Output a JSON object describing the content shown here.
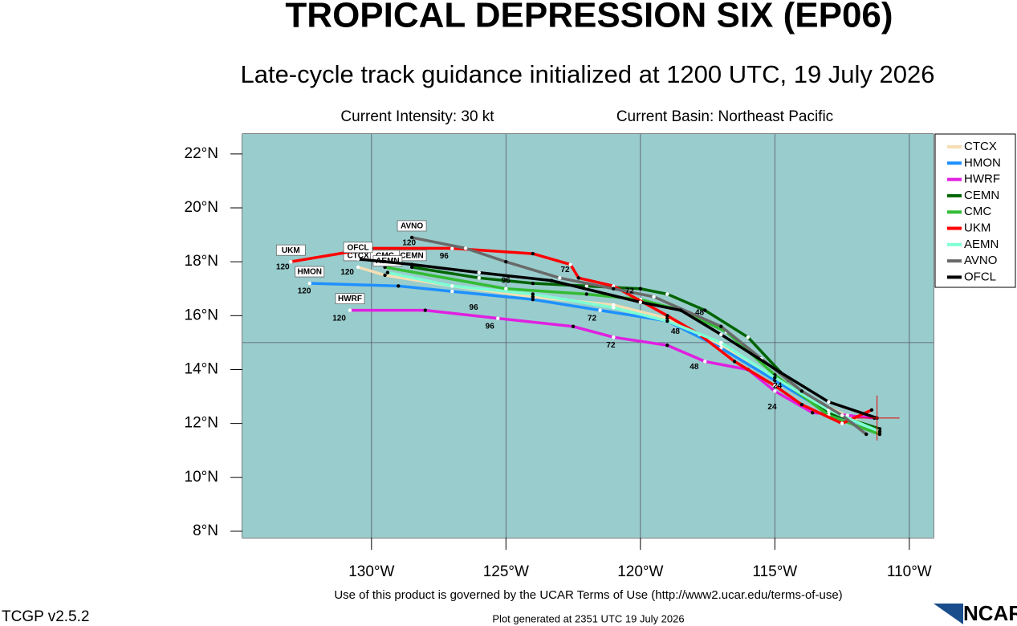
{
  "chart_data": {
    "type": "line",
    "title": "TROPICAL DEPRESSION SIX (EP06)",
    "subtitle": "Late-cycle track guidance initialized at 1200 UTC, 19 July 2026",
    "intensity": "Current Intensity: 30 kt",
    "basin": "Current Basin: Northeast Pacific",
    "footer_terms": "Use of this product is governed by the UCAR Terms of Use (http://www2.ucar.edu/terms-of-use)",
    "footer_generated": "Plot generated at 2351 UTC   19 July 2026",
    "version": "TCGP v2.5.2",
    "logo": "NCAR",
    "xlim": [
      -134.8,
      -109.1
    ],
    "ylim": [
      7.76,
      22.74
    ],
    "xticks": [
      {
        "value": -130,
        "label": "130°W"
      },
      {
        "value": -125,
        "label": "125°W"
      },
      {
        "value": -120,
        "label": "120°W"
      },
      {
        "value": -115,
        "label": "115°W"
      },
      {
        "value": -110,
        "label": "110°W"
      }
    ],
    "yticks": [
      {
        "value": 8,
        "label": "8°N"
      },
      {
        "value": 10,
        "label": "10°N"
      },
      {
        "value": 12,
        "label": "12°N"
      },
      {
        "value": 14,
        "label": "14°N"
      },
      {
        "value": 16,
        "label": "16°N"
      },
      {
        "value": 18,
        "label": "18°N"
      },
      {
        "value": 20,
        "label": "20°N"
      },
      {
        "value": 22,
        "label": "22°N"
      }
    ],
    "ygrid": [
      15
    ],
    "background": "#99cccc",
    "series": [
      {
        "name": "CTCX",
        "color": "#f5deb3",
        "x": [
          -111.3,
          -113,
          -115,
          -117,
          -119,
          -121,
          -124,
          -127,
          -129.5,
          -130.5
        ],
        "values": [
          11.8,
          12.6,
          13.6,
          14.9,
          15.9,
          16.4,
          16.7,
          17.1,
          17.5,
          17.8
        ]
      },
      {
        "name": "HMON",
        "color": "#1e90ff",
        "x": [
          -111.2,
          -113,
          -115,
          -117,
          -119,
          -121.5,
          -124,
          -127,
          -129,
          -132.3
        ],
        "values": [
          11.8,
          12.4,
          13.6,
          14.8,
          15.8,
          16.2,
          16.6,
          16.9,
          17.1,
          17.2
        ],
        "hour_labels": [
          {
            "text": "120",
            "x": -132.5,
            "y": 16.9
          },
          {
            "text": "96",
            "x": -126.2,
            "y": 16.3
          },
          {
            "text": "72",
            "x": -121.8,
            "y": 15.9
          },
          {
            "text": "48",
            "x": -118.7,
            "y": 15.4
          }
        ]
      },
      {
        "name": "HWRF",
        "color": "#e020e0",
        "x": [
          -111.3,
          -112.3,
          -113.6,
          -115,
          -116,
          -117.6,
          -119,
          -121,
          -122.5,
          -125.3,
          -128,
          -130.8
        ],
        "values": [
          12.2,
          12.3,
          12.4,
          13.2,
          14,
          14.3,
          14.9,
          15.2,
          15.6,
          15.9,
          16.2,
          16.2
        ],
        "hour_labels": [
          {
            "text": "120",
            "x": -131.2,
            "y": 15.9
          },
          {
            "text": "96",
            "x": -125.6,
            "y": 15.6
          },
          {
            "text": "72",
            "x": -121.1,
            "y": 14.9
          },
          {
            "text": "48",
            "x": -118,
            "y": 14.1
          },
          {
            "text": "24",
            "x": -115.1,
            "y": 12.6
          }
        ]
      },
      {
        "name": "CEMN",
        "color": "#006400",
        "x": [
          -111.1,
          -113,
          -114.5,
          -116,
          -117.6,
          -119,
          -120,
          -122,
          -124,
          -126,
          -128.5
        ],
        "values": [
          11.8,
          12.4,
          13.6,
          15.2,
          16.2,
          16.8,
          17,
          17.1,
          17.2,
          17.4,
          17.8
        ],
        "hour_labels": [
          {
            "text": "48",
            "x": -117.8,
            "y": 16.1
          }
        ]
      },
      {
        "name": "CMC",
        "color": "#33bb33",
        "x": [
          -111.1,
          -113,
          -115,
          -116.8,
          -118.5,
          -120,
          -122,
          -125,
          -129.5
        ],
        "values": [
          11.6,
          12.3,
          13.8,
          15.4,
          16.2,
          16.6,
          16.8,
          17,
          17.8
        ]
      },
      {
        "name": "UKM",
        "color": "#ff0000",
        "x": [
          -111.4,
          -112.5,
          -114,
          -115,
          -116.5,
          -117.8,
          -119,
          -121,
          -122.3,
          -122.6,
          -124,
          -127,
          -130,
          -133
        ],
        "values": [
          12.5,
          12,
          12.7,
          13.4,
          14.3,
          15.3,
          16,
          17.1,
          17.4,
          17.9,
          18.3,
          18.5,
          18.5,
          18
        ],
        "hour_labels": [
          {
            "text": "120",
            "x": -133.3,
            "y": 17.8
          },
          {
            "text": "96",
            "x": -127.3,
            "y": 18.2
          },
          {
            "text": "72",
            "x": -122.8,
            "y": 17.7
          }
        ]
      },
      {
        "name": "AEMN",
        "color": "#7fffd4",
        "x": [
          -111.1,
          -113,
          -115,
          -117,
          -119,
          -121,
          -124,
          -127,
          -129.4
        ],
        "values": [
          11.7,
          12.5,
          13.7,
          15,
          15.8,
          16.3,
          16.8,
          17.1,
          17.6
        ]
      },
      {
        "name": "AVNO",
        "color": "#696969",
        "x": [
          -111.6,
          -112.5,
          -114,
          -115.5,
          -117,
          -119.5,
          -121,
          -123,
          -125,
          -126.5,
          -128.5
        ],
        "values": [
          11.6,
          12.3,
          13.2,
          14.4,
          15.6,
          16.7,
          17,
          17.4,
          18,
          18.5,
          18.9
        ],
        "hour_labels": [
          {
            "text": "120",
            "x": -128.6,
            "y": 18.7
          }
        ]
      },
      {
        "name": "OFCL",
        "color": "#000000",
        "x": [
          -111.2,
          -113,
          -114.8,
          -117,
          -118.5,
          -120,
          -123.3,
          -126,
          -128.5,
          -130.5
        ],
        "values": [
          12.2,
          12.8,
          13.9,
          15.3,
          16.2,
          16.5,
          17.3,
          17.6,
          17.9,
          18.1
        ],
        "hour_labels": [
          {
            "text": "120",
            "x": -130.9,
            "y": 17.6
          },
          {
            "text": "96",
            "x": -125,
            "y": 17.3
          },
          {
            "text": "72",
            "x": -120.4,
            "y": 16.9
          },
          {
            "text": "24",
            "x": -114.9,
            "y": 13.4
          }
        ]
      }
    ]
  }
}
